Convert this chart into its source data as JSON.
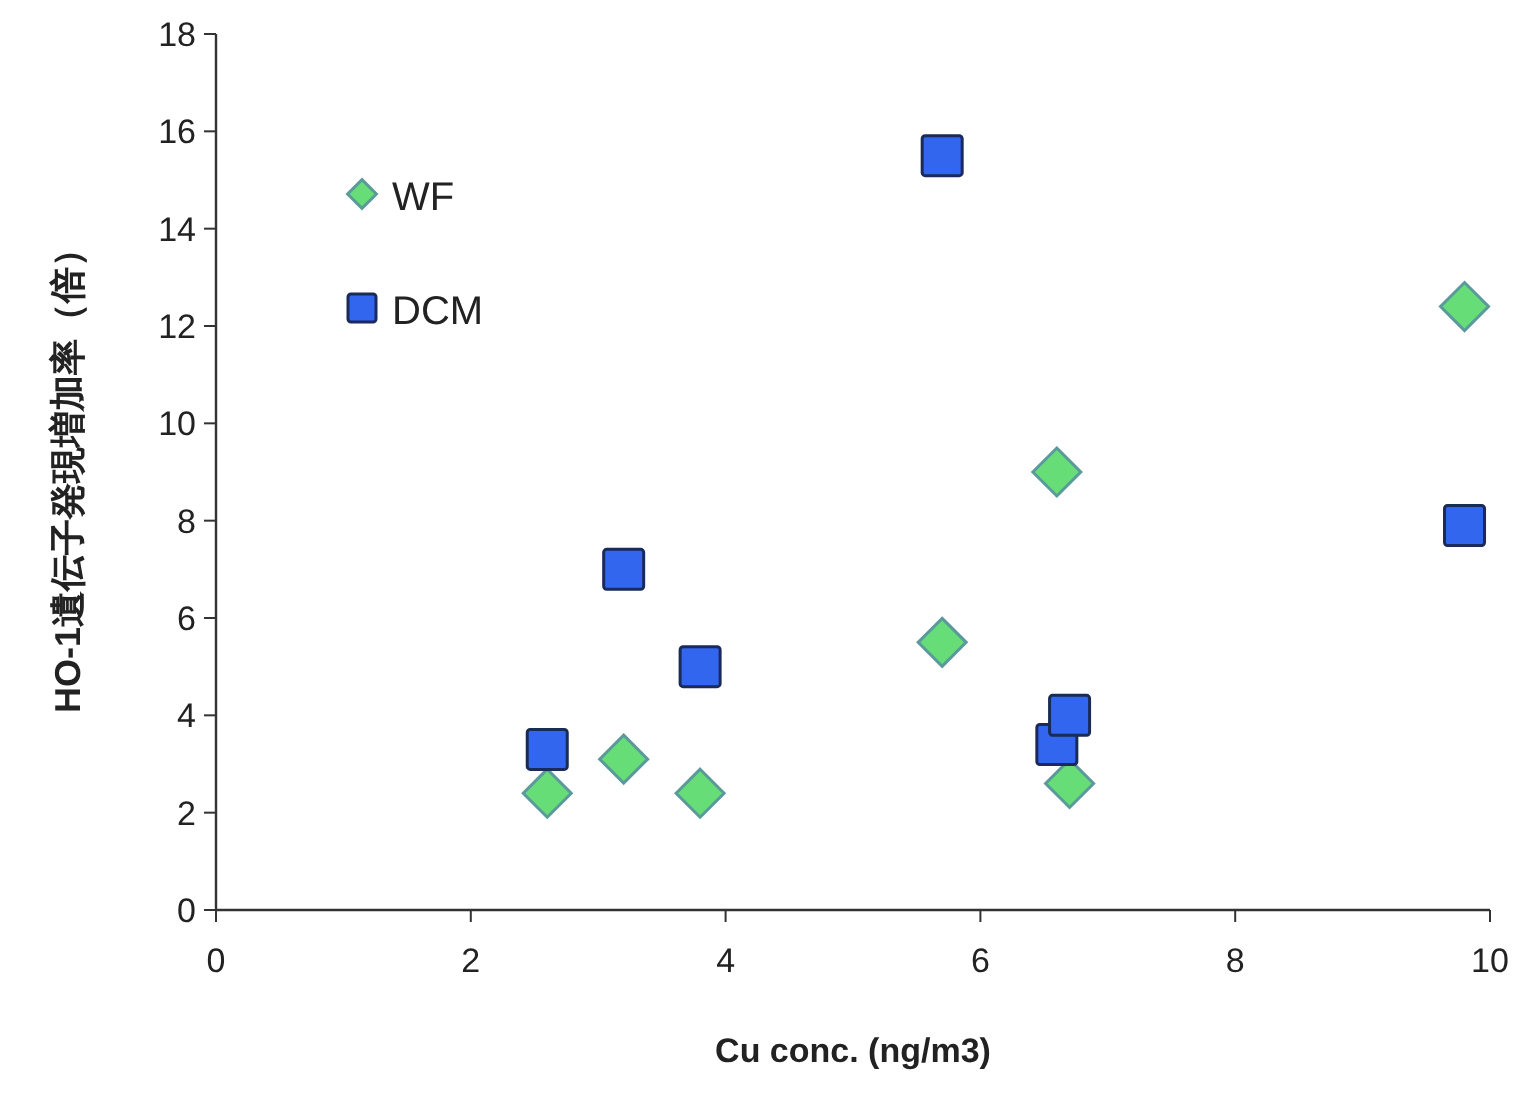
{
  "chart_data": {
    "type": "scatter",
    "xlabel": "Cu conc. (ng/m3)",
    "ylabel": "HO-1遺伝子発現増加率（倍）",
    "xlim": [
      0,
      10
    ],
    "xticks": [
      0,
      2,
      4,
      6,
      8,
      10
    ],
    "ylim": [
      0,
      18
    ],
    "yticks": [
      0,
      2,
      4,
      6,
      8,
      10,
      12,
      14,
      16,
      18
    ],
    "grid": false,
    "legend": "top left",
    "series": [
      {
        "name": "WF",
        "color": "#66dd77",
        "marker": "diamond",
        "x": [
          2.6,
          3.2,
          3.8,
          5.7,
          6.6,
          6.7,
          9.8
        ],
        "values": [
          2.4,
          3.1,
          2.4,
          5.5,
          9.0,
          2.6,
          12.4
        ]
      },
      {
        "name": "DCM",
        "color": "#3366ee",
        "marker": "square",
        "x": [
          2.6,
          3.2,
          3.8,
          5.7,
          6.6,
          6.7,
          9.8
        ],
        "values": [
          3.3,
          7.0,
          5.0,
          15.5,
          3.4,
          4.0,
          7.9
        ]
      }
    ]
  }
}
